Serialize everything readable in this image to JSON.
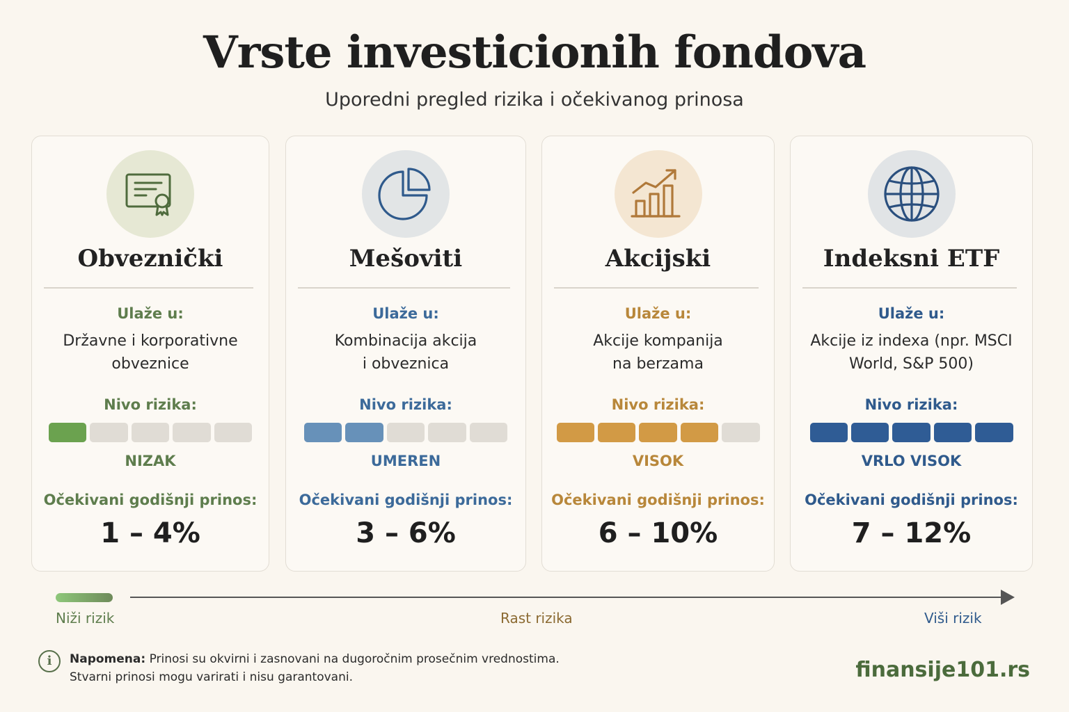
{
  "title": "Vrste investicionih fondova",
  "subtitle": "Uporedni pregled rizika i očekivanog prinosa",
  "cards": [
    {
      "icon": "certificate-icon",
      "title": "Obveznički",
      "invest_label": "Ulaže u:",
      "invest_line1": "Državne i korporativne",
      "invest_line2": "obveznice",
      "risk_label": "Nivo rizika:",
      "risk_level_filled": 1,
      "risk_level_max": 5,
      "risk_text": "NIZAK",
      "return_label": "Očekivani godišnji prinos:",
      "return_value": "1 – 4%",
      "accent": "#5e7d4d",
      "bar_color": "#6ba24f",
      "icon_bg": "#e6e8d4"
    },
    {
      "icon": "pie-chart-icon",
      "title": "Mešoviti",
      "invest_label": "Ulaže u:",
      "invest_line1": "Kombinacija akcija",
      "invest_line2": "i obveznica",
      "risk_label": "Nivo rizika:",
      "risk_level_filled": 2,
      "risk_level_max": 5,
      "risk_text": "UMEREN",
      "return_label": "Očekivani godišnji prinos:",
      "return_value": "3 – 6%",
      "accent": "#3c6a9a",
      "bar_color": "#6791b9",
      "icon_bg": "#e2e5e6"
    },
    {
      "icon": "growth-chart-icon",
      "title": "Akcijski",
      "invest_label": "Ulaže u:",
      "invest_line1": "Akcije kompanija",
      "invest_line2": "na berzama",
      "risk_label": "Nivo rizika:",
      "risk_level_filled": 4,
      "risk_level_max": 5,
      "risk_text": "VISOK",
      "return_label": "Očekivani godišnji prinos:",
      "return_value": "6 – 10%",
      "accent": "#b8873a",
      "bar_color": "#d29a45",
      "icon_bg": "#f4e6d2"
    },
    {
      "icon": "globe-icon",
      "title": "Indeksni ETF",
      "invest_label": "Ulaže u:",
      "invest_line1": "Akcije iz indexa (npr. MSCI",
      "invest_line2": "World, S&P 500)",
      "risk_label": "Nivo rizika:",
      "risk_level_filled": 5,
      "risk_level_max": 5,
      "risk_text": "VRLO VISOK",
      "return_label": "Očekivani godišnji prinos:",
      "return_value": "7 – 12%",
      "accent": "#2f5a8c",
      "bar_color": "#2f5c95",
      "icon_bg": "#e1e4e6"
    }
  ],
  "scale": {
    "low": "Niži rizik",
    "mid": "Rast rizika",
    "high": "Viši rizik"
  },
  "note": {
    "icon": "info-icon",
    "icon_glyph": "i",
    "bold": "Napomena:",
    "line1": " Prinosi su okvirni i zasnovani na dugoročnim prosečnim vrednostima.",
    "line2": "Stvarni prinosi mogu varirati i nisu garantovani."
  },
  "site": "finansije101.rs"
}
